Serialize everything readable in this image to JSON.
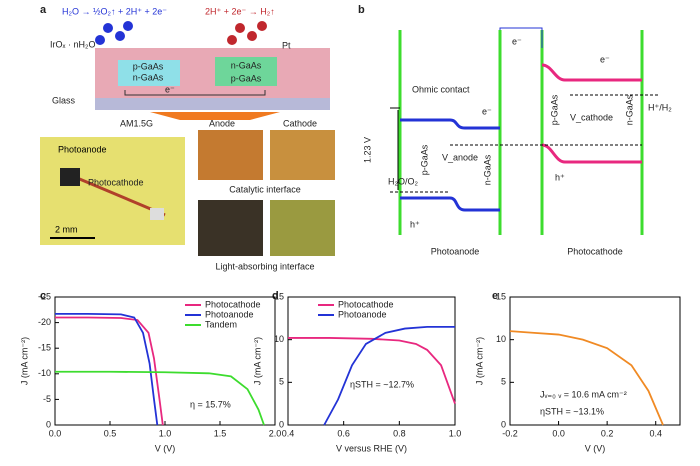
{
  "panel_labels": [
    "a",
    "b",
    "c",
    "d",
    "e"
  ],
  "diagram_a": {
    "labels": [
      "H₂O → ½O₂↑ + 2H⁺ + 2e⁻",
      "2H⁺ + 2e⁻ → H₂↑",
      "IrOₓ · nH₂O",
      "Pt",
      "p-GaAs",
      "n-GaAs",
      "n-GaAs",
      "p-GaAs",
      "e⁻",
      "Glass",
      "AM1.5G",
      "Anode",
      "Cathode",
      "Photoanode",
      "Photocathode",
      "2 mm",
      "Catalytic interface",
      "Light-absorbing interface"
    ]
  },
  "diagram_b": {
    "labels": [
      "e⁻",
      "Ohmic contact",
      "1.23 V",
      "e⁻",
      "p-GaAs",
      "V_anode",
      "n-GaAs",
      "H₂O/O₂",
      "h⁺",
      "Photoanode",
      "p-GaAs",
      "V_cathode",
      "n-GaAs",
      "H⁺/H₂",
      "e⁻",
      "h⁺",
      "Photocathode"
    ]
  },
  "chart_data": [
    {
      "type": "line",
      "x_label": "V (V)",
      "y_label": "J (mA cm⁻²)",
      "xlim": [
        0,
        2
      ],
      "ylim": [
        0,
        -25
      ],
      "xticks": [
        {
          "value": 0,
          "label": "0.0"
        },
        {
          "value": 0.5,
          "label": "0.5"
        },
        {
          "value": 1,
          "label": "1.0"
        },
        {
          "value": 1.5,
          "label": "1.5"
        },
        {
          "value": 2,
          "label": "2.0"
        }
      ],
      "yticks": [
        -25,
        -20,
        -15,
        -10,
        -5,
        0
      ],
      "series": [
        {
          "name": "Photocathode",
          "color": "#e8287f",
          "x": [
            0,
            0.3,
            0.6,
            0.75,
            0.85,
            0.9,
            0.95,
            0.98
          ],
          "values": [
            -21,
            -21,
            -20.9,
            -20.5,
            -18,
            -13,
            -5,
            0
          ]
        },
        {
          "name": "Photoanode",
          "color": "#2333d6",
          "x": [
            0,
            0.3,
            0.6,
            0.72,
            0.8,
            0.86,
            0.9,
            0.93
          ],
          "values": [
            -21.7,
            -21.7,
            -21.6,
            -21,
            -18,
            -12,
            -5,
            0
          ]
        },
        {
          "name": "Tandem",
          "color": "#3ddc2e",
          "x": [
            0,
            0.5,
            1,
            1.4,
            1.6,
            1.75,
            1.85,
            1.9
          ],
          "values": [
            -10.4,
            -10.4,
            -10.3,
            -10.1,
            -9.5,
            -7,
            -3,
            0
          ]
        }
      ],
      "annotations": [
        "η = 15.7%"
      ]
    },
    {
      "type": "line",
      "x_label": "V versus RHE (V)",
      "y_label": "J (mA cm⁻²)",
      "xlim": [
        0.4,
        1
      ],
      "ylim": [
        0,
        15
      ],
      "xticks": [
        0.4,
        0.6,
        0.8,
        {
          "value": 1,
          "label": "1.0"
        }
      ],
      "yticks": [
        0,
        5,
        10,
        15
      ],
      "series": [
        {
          "name": "Photocathode",
          "color": "#e8287f",
          "x": [
            0.4,
            0.55,
            0.7,
            0.8,
            0.86,
            0.9,
            0.95,
            1
          ],
          "values": [
            10.2,
            10.2,
            10.1,
            9.9,
            9.5,
            8.8,
            7,
            2.5
          ]
        },
        {
          "name": "Photoanode",
          "color": "#2333d6",
          "x": [
            0.53,
            0.58,
            0.63,
            0.68,
            0.75,
            0.82,
            0.9,
            1
          ],
          "values": [
            0,
            3,
            7,
            9.5,
            10.8,
            11.3,
            11.5,
            11.5
          ]
        }
      ],
      "annotations": [
        "ηSTH = ~12.7%"
      ]
    },
    {
      "type": "line",
      "x_label": "V (V)",
      "y_label": "J (mA cm⁻²)",
      "xlim": [
        -0.2,
        0.5
      ],
      "ylim": [
        0,
        15
      ],
      "xticks": [
        -0.2,
        {
          "value": 0,
          "label": "0.0"
        },
        0.2,
        0.4
      ],
      "yticks": [
        0,
        5,
        10,
        15
      ],
      "series": [
        {
          "color": "#f08a24",
          "x": [
            -0.2,
            -0.1,
            0,
            0.1,
            0.2,
            0.3,
            0.37,
            0.43
          ],
          "values": [
            11,
            10.8,
            10.6,
            10,
            9,
            7,
            4,
            0
          ]
        }
      ],
      "annotations": [
        "Jᵥ₌₀ ᵥ = 10.6 mA cm⁻²",
        "ηSTH = ~13.1%"
      ]
    }
  ]
}
